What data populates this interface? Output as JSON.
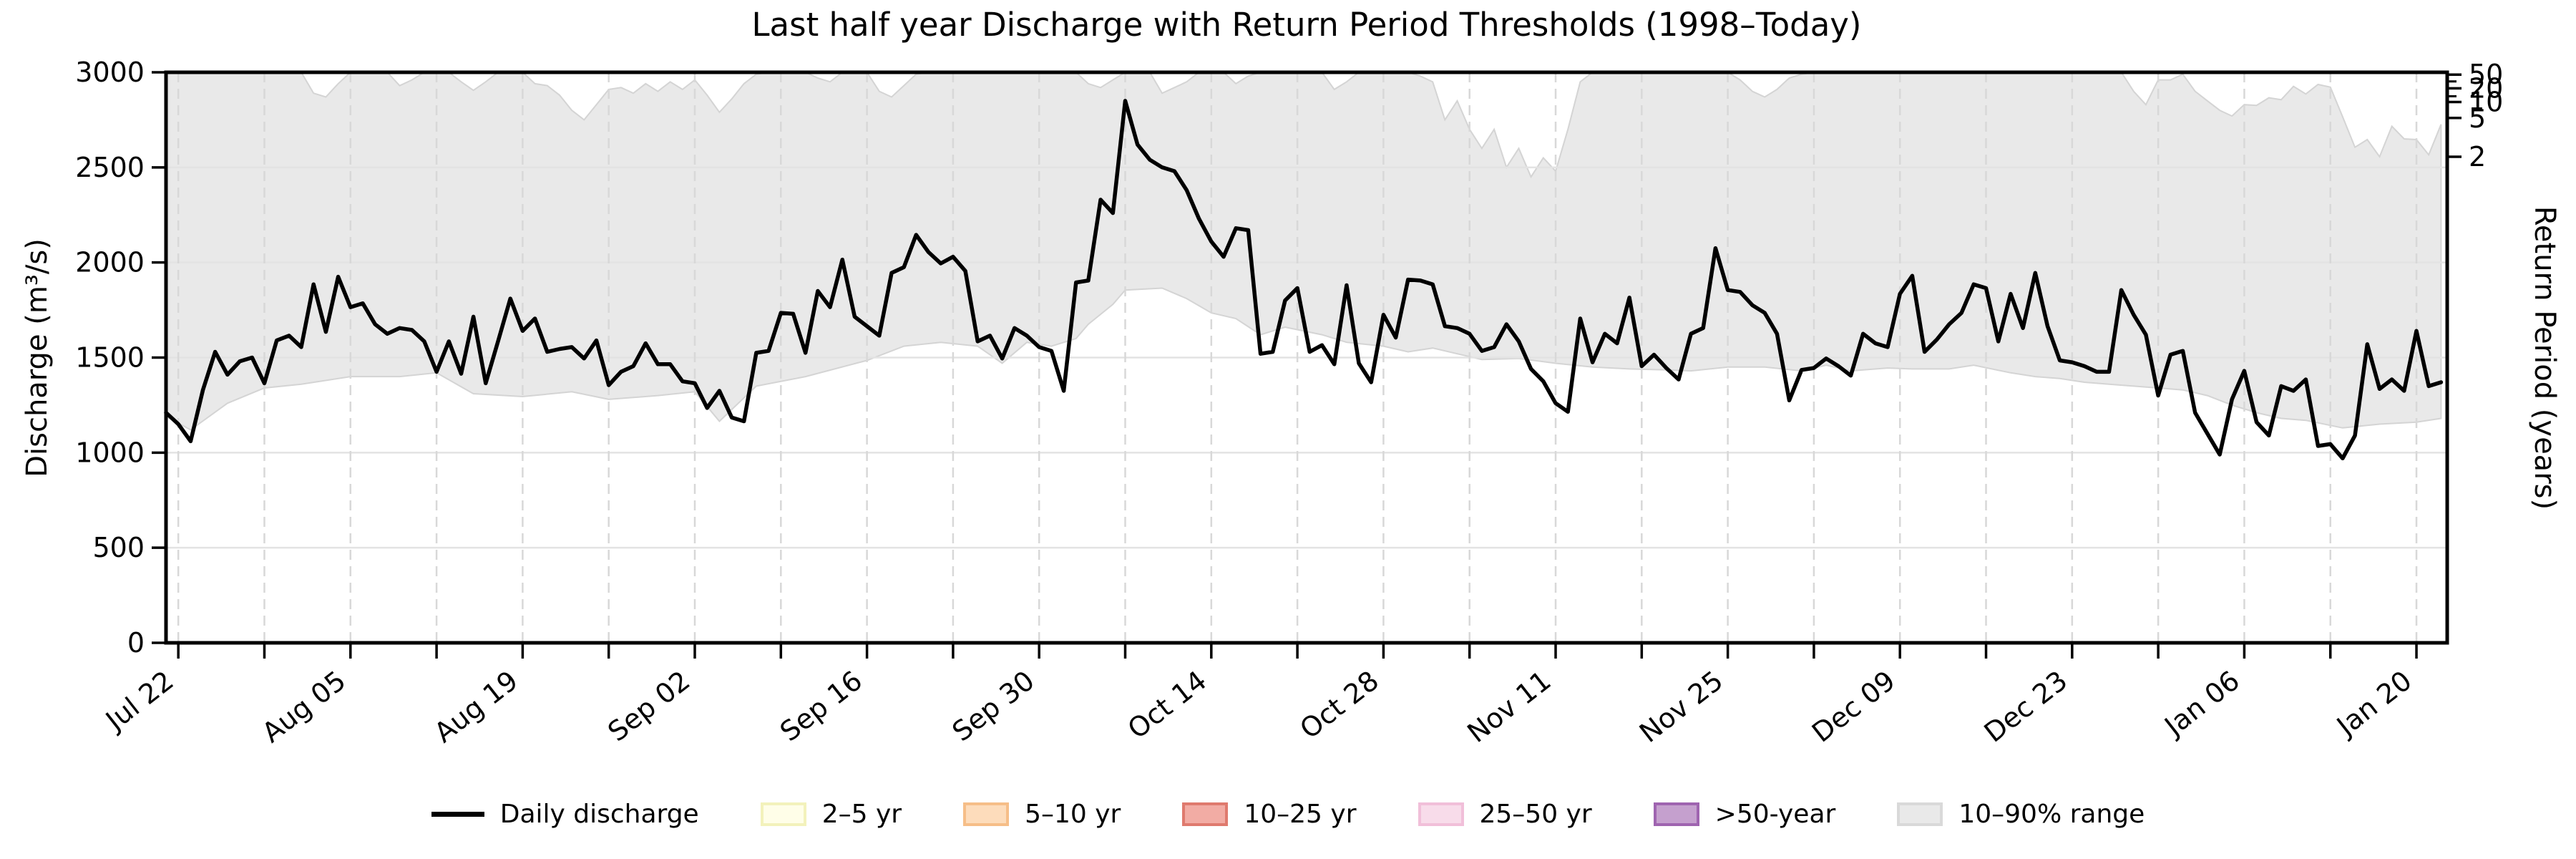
{
  "title": "Last half year Discharge with Return Period Thresholds (1998–Today)",
  "axes": {
    "ylabel_left": "Discharge (m³/s)",
    "ylabel_right": "Return Period (years)"
  },
  "legend": {
    "items": [
      {
        "label": "Daily discharge",
        "swatch": "line",
        "fill": "#000000",
        "edge": "#000000"
      },
      {
        "label": "2–5 yr",
        "swatch": "patch",
        "fill": "#fffee8",
        "edge": "#f3f2bb"
      },
      {
        "label": "5–10 yr",
        "swatch": "patch",
        "fill": "#fddcbb",
        "edge": "#f6be88"
      },
      {
        "label": "10–25 yr",
        "swatch": "patch",
        "fill": "#f2aca4",
        "edge": "#df7a6e"
      },
      {
        "label": "25–50 yr",
        "swatch": "patch",
        "fill": "#f8dcea",
        "edge": "#f1bfd9"
      },
      {
        "label": ">50-year",
        "swatch": "patch",
        "fill": "#c5a0ce",
        "edge": "#9f64b0"
      },
      {
        "label": "10–90% range",
        "swatch": "patch",
        "fill": "#e9e9e9",
        "edge": "#d9d9d9"
      }
    ]
  },
  "chart_data": {
    "type": "line",
    "title": "Last half year Discharge with Return Period Thresholds (1998–Today)",
    "xlabel": "",
    "ylabel_left": "Discharge (m³/s)",
    "ylabel_right": "Return Period (years)",
    "ylim_left": [
      0,
      3000
    ],
    "grid": {
      "horizontal": "solid",
      "vertical": "dashed-weekly"
    },
    "x_unit": "days since Jul 21",
    "x_start_label": "Jul 21",
    "x_end_label": "Jan 22",
    "x_tick_positions": [
      1,
      15,
      29,
      43,
      57,
      71,
      85,
      99,
      113,
      127,
      141,
      155,
      169,
      183
    ],
    "x_tick_labels": [
      "Jul 22",
      "Aug 05",
      "Aug 19",
      "Sep 02",
      "Sep 16",
      "Sep 30",
      "Oct 14",
      "Oct 28",
      "Nov 11",
      "Nov 25",
      "Dec 09",
      "Dec 23",
      "Jan 06",
      "Jan 20"
    ],
    "x_minor_tick_interval_days": 7,
    "y_ticks": [
      0,
      500,
      1000,
      1500,
      2000,
      2500,
      3000
    ],
    "right_axis_ticks": [
      {
        "label": "50",
        "discharge": 2988
      },
      {
        "label": "20",
        "discharge": 2916
      },
      {
        "label": "10",
        "discharge": 2844
      },
      {
        "label": "5",
        "discharge": 2760
      },
      {
        "label": "2",
        "discharge": 2556
      }
    ],
    "right_axis_minor_tick_discharges": [
      2952,
      2874
    ],
    "series": [
      {
        "name": "Daily discharge",
        "color": "#000000",
        "values": [
          1210,
          1150,
          1060,
          1330,
          1530,
          1410,
          1480,
          1500,
          1365,
          1590,
          1615,
          1555,
          1885,
          1635,
          1925,
          1765,
          1785,
          1675,
          1625,
          1655,
          1645,
          1585,
          1425,
          1585,
          1415,
          1715,
          1365,
          1585,
          1810,
          1640,
          1705,
          1530,
          1545,
          1555,
          1495,
          1590,
          1355,
          1425,
          1455,
          1575,
          1465,
          1465,
          1375,
          1365,
          1235,
          1325,
          1185,
          1165,
          1525,
          1535,
          1735,
          1730,
          1525,
          1850,
          1765,
          2015,
          1715,
          1665,
          1615,
          1945,
          1975,
          2145,
          2055,
          1995,
          2030,
          1955,
          1585,
          1615,
          1495,
          1655,
          1615,
          1555,
          1535,
          1325,
          1895,
          1905,
          2330,
          2260,
          2850,
          2620,
          2540,
          2500,
          2480,
          2380,
          2230,
          2110,
          2030,
          2180,
          2170,
          1520,
          1530,
          1800,
          1865,
          1530,
          1565,
          1465,
          1880,
          1470,
          1370,
          1725,
          1605,
          1910,
          1905,
          1885,
          1665,
          1655,
          1625,
          1535,
          1555,
          1675,
          1585,
          1440,
          1375,
          1260,
          1215,
          1705,
          1475,
          1625,
          1575,
          1815,
          1455,
          1515,
          1445,
          1385,
          1625,
          1655,
          2075,
          1855,
          1845,
          1775,
          1735,
          1625,
          1275,
          1435,
          1445,
          1495,
          1455,
          1405,
          1625,
          1575,
          1555,
          1835,
          1930,
          1530,
          1595,
          1675,
          1735,
          1885,
          1865,
          1585,
          1835,
          1655,
          1945,
          1665,
          1485,
          1475,
          1455,
          1425,
          1425,
          1855,
          1725,
          1620,
          1300,
          1515,
          1535,
          1210,
          1100,
          990,
          1280,
          1430,
          1160,
          1090,
          1350,
          1325,
          1385,
          1035,
          1045,
          970,
          1090,
          1570,
          1335,
          1385,
          1325,
          1640,
          1350,
          1370
        ]
      }
    ],
    "band_10_90": {
      "label": "10–90% range",
      "fill": "#e9e9e9",
      "edge": "#d4d4d4",
      "upper_keypoints": [
        [
          0,
          3000
        ],
        [
          11,
          3000
        ],
        [
          12,
          2890
        ],
        [
          13,
          2870
        ],
        [
          14,
          2940
        ],
        [
          15,
          3000
        ],
        [
          18,
          3000
        ],
        [
          19,
          2930
        ],
        [
          20,
          2960
        ],
        [
          21,
          3000
        ],
        [
          23,
          3000
        ],
        [
          24,
          2950
        ],
        [
          25,
          2905
        ],
        [
          26,
          2950
        ],
        [
          27,
          3000
        ],
        [
          29,
          3000
        ],
        [
          30,
          2940
        ],
        [
          31,
          2930
        ],
        [
          32,
          2880
        ],
        [
          33,
          2800
        ],
        [
          34,
          2750
        ],
        [
          35,
          2830
        ],
        [
          36,
          2910
        ],
        [
          37,
          2920
        ],
        [
          38,
          2890
        ],
        [
          39,
          2940
        ],
        [
          40,
          2900
        ],
        [
          41,
          2950
        ],
        [
          42,
          2910
        ],
        [
          43,
          2960
        ],
        [
          44,
          2880
        ],
        [
          45,
          2790
        ],
        [
          46,
          2860
        ],
        [
          47,
          2940
        ],
        [
          48,
          2990
        ],
        [
          49,
          3000
        ],
        [
          52,
          3000
        ],
        [
          53,
          2970
        ],
        [
          54,
          2950
        ],
        [
          55,
          3000
        ],
        [
          57,
          3000
        ],
        [
          58,
          2900
        ],
        [
          59,
          2870
        ],
        [
          60,
          2930
        ],
        [
          61,
          2990
        ],
        [
          62,
          3000
        ],
        [
          74,
          3000
        ],
        [
          75,
          2940
        ],
        [
          76,
          2920
        ],
        [
          77,
          2960
        ],
        [
          78,
          3000
        ],
        [
          80,
          3000
        ],
        [
          81,
          2890
        ],
        [
          82,
          2920
        ],
        [
          83,
          2950
        ],
        [
          84,
          3000
        ],
        [
          86,
          3000
        ],
        [
          87,
          2940
        ],
        [
          88,
          2980
        ],
        [
          89,
          3000
        ],
        [
          94,
          3000
        ],
        [
          95,
          2910
        ],
        [
          96,
          2950
        ],
        [
          97,
          3000
        ],
        [
          101,
          3000
        ],
        [
          102,
          2980
        ],
        [
          103,
          2950
        ],
        [
          104,
          2750
        ],
        [
          105,
          2850
        ],
        [
          106,
          2700
        ],
        [
          107,
          2600
        ],
        [
          108,
          2700
        ],
        [
          109,
          2500
        ],
        [
          110,
          2600
        ],
        [
          111,
          2450
        ],
        [
          112,
          2550
        ],
        [
          113,
          2480
        ],
        [
          114,
          2700
        ],
        [
          115,
          2950
        ],
        [
          116,
          3000
        ],
        [
          127,
          3000
        ],
        [
          128,
          2960
        ],
        [
          129,
          2900
        ],
        [
          130,
          2870
        ],
        [
          131,
          2910
        ],
        [
          132,
          2970
        ],
        [
          133,
          2990
        ],
        [
          134,
          3000
        ],
        [
          159,
          3000
        ],
        [
          160,
          2900
        ],
        [
          161,
          2830
        ],
        [
          162,
          2960
        ],
        [
          163,
          2960
        ],
        [
          164,
          2990
        ],
        [
          165,
          2900
        ],
        [
          166,
          2850
        ],
        [
          167,
          2800
        ],
        [
          168,
          2770
        ],
        [
          169,
          2830
        ],
        [
          170,
          2826
        ],
        [
          171,
          2866
        ],
        [
          172,
          2856
        ],
        [
          173,
          2926
        ],
        [
          174,
          2886
        ],
        [
          175,
          2936
        ],
        [
          176,
          2922
        ],
        [
          177,
          2766
        ],
        [
          178,
          2606
        ],
        [
          179,
          2646
        ],
        [
          180,
          2556
        ],
        [
          181,
          2716
        ],
        [
          182,
          2650
        ],
        [
          183,
          2646
        ],
        [
          184,
          2566
        ],
        [
          185,
          2726
        ]
      ],
      "lower_keypoints": [
        [
          0,
          1190
        ],
        [
          2,
          1120
        ],
        [
          5,
          1260
        ],
        [
          8,
          1340
        ],
        [
          11,
          1360
        ],
        [
          15,
          1400
        ],
        [
          19,
          1400
        ],
        [
          22,
          1420
        ],
        [
          25,
          1310
        ],
        [
          29,
          1295
        ],
        [
          33,
          1320
        ],
        [
          36,
          1280
        ],
        [
          40,
          1300
        ],
        [
          43,
          1320
        ],
        [
          45,
          1165
        ],
        [
          48,
          1350
        ],
        [
          52,
          1400
        ],
        [
          57,
          1485
        ],
        [
          60,
          1560
        ],
        [
          63,
          1580
        ],
        [
          66,
          1560
        ],
        [
          68,
          1470
        ],
        [
          70,
          1580
        ],
        [
          72,
          1560
        ],
        [
          74,
          1600
        ],
        [
          75,
          1675
        ],
        [
          77,
          1780
        ],
        [
          78,
          1855
        ],
        [
          81,
          1865
        ],
        [
          83,
          1810
        ],
        [
          85,
          1735
        ],
        [
          87,
          1705
        ],
        [
          89,
          1620
        ],
        [
          91,
          1660
        ],
        [
          94,
          1620
        ],
        [
          96,
          1580
        ],
        [
          99,
          1560
        ],
        [
          101,
          1530
        ],
        [
          103,
          1550
        ],
        [
          105,
          1520
        ],
        [
          107,
          1490
        ],
        [
          110,
          1495
        ],
        [
          113,
          1470
        ],
        [
          116,
          1450
        ],
        [
          119,
          1440
        ],
        [
          122,
          1435
        ],
        [
          124,
          1430
        ],
        [
          127,
          1450
        ],
        [
          130,
          1450
        ],
        [
          133,
          1430
        ],
        [
          135,
          1460
        ],
        [
          137,
          1430
        ],
        [
          140,
          1445
        ],
        [
          142,
          1440
        ],
        [
          145,
          1440
        ],
        [
          147,
          1460
        ],
        [
          150,
          1420
        ],
        [
          152,
          1400
        ],
        [
          154,
          1390
        ],
        [
          156,
          1370
        ],
        [
          158,
          1360
        ],
        [
          160,
          1350
        ],
        [
          162,
          1340
        ],
        [
          164,
          1330
        ],
        [
          166,
          1300
        ],
        [
          168,
          1250
        ],
        [
          170,
          1210
        ],
        [
          172,
          1180
        ],
        [
          174,
          1170
        ],
        [
          177,
          1130
        ],
        [
          180,
          1150
        ],
        [
          183,
          1160
        ],
        [
          185,
          1180
        ]
      ]
    },
    "threshold_bands_legend_only": [
      {
        "label": "2–5 yr",
        "fill": "#fffee8"
      },
      {
        "label": "5–10 yr",
        "fill": "#fddcbb"
      },
      {
        "label": "10–25 yr",
        "fill": "#f2aca4"
      },
      {
        "label": "25–50 yr",
        "fill": "#f8dcea"
      },
      {
        "label": ">50-year",
        "fill": "#c5a0ce"
      }
    ],
    "style": {
      "line_color": "#000000",
      "band_fill": "#e9e9e9",
      "band_edge": "#d4d4d4",
      "hgrid_color": "#e3e3e3",
      "vgrid_color": "#d8d8d8",
      "spine_color": "#000000"
    }
  }
}
